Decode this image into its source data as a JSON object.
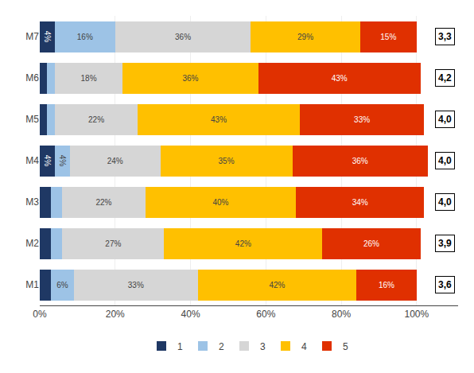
{
  "chart_data": {
    "type": "bar",
    "orientation": "horizontal",
    "stacked": true,
    "data_labels": true,
    "grid": true,
    "legend": "bottom",
    "categories": [
      "M1",
      "M2",
      "M3",
      "M4",
      "M5",
      "M6",
      "M7"
    ],
    "series": [
      {
        "name": "1",
        "color": "#1F3864",
        "values": [
          3,
          3,
          3,
          4,
          2,
          2,
          4
        ],
        "value_labels": [
          null,
          null,
          null,
          "4%",
          null,
          null,
          "4%"
        ]
      },
      {
        "name": "2",
        "color": "#9DC3E6",
        "values": [
          6,
          3,
          3,
          4,
          2,
          2,
          16
        ],
        "value_labels": [
          "6%",
          null,
          null,
          "4%",
          null,
          null,
          "16%"
        ]
      },
      {
        "name": "3",
        "color": "#D6D6D6",
        "values": [
          33,
          27,
          22,
          24,
          22,
          18,
          36
        ],
        "value_labels": [
          "33%",
          "27%",
          "22%",
          "24%",
          "22%",
          "18%",
          "36%"
        ]
      },
      {
        "name": "4",
        "color": "#FFC000",
        "values": [
          42,
          42,
          40,
          35,
          43,
          36,
          29
        ],
        "value_labels": [
          "42%",
          "42%",
          "40%",
          "35%",
          "43%",
          "36%",
          "29%"
        ]
      },
      {
        "name": "5",
        "color": "#E03000",
        "values": [
          16,
          26,
          34,
          36,
          33,
          43,
          15
        ],
        "value_labels": [
          "16%",
          "26%",
          "34%",
          "36%",
          "33%",
          "43%",
          "15%"
        ]
      }
    ],
    "annotations": [
      {
        "category": "M1",
        "text": "3,6"
      },
      {
        "category": "M2",
        "text": "3,9"
      },
      {
        "category": "M3",
        "text": "4,0"
      },
      {
        "category": "M4",
        "text": "4,0"
      },
      {
        "category": "M5",
        "text": "4,0"
      },
      {
        "category": "M6",
        "text": "4,2"
      },
      {
        "category": "M7",
        "text": "3,3"
      }
    ],
    "xlim": [
      0,
      111
    ],
    "xticks": [
      {
        "value": 0,
        "label": "0%"
      },
      {
        "value": 20,
        "label": "20%"
      },
      {
        "value": 40,
        "label": "40%"
      },
      {
        "value": 60,
        "label": "60%"
      },
      {
        "value": 80,
        "label": "80%"
      },
      {
        "value": 100,
        "label": "100%"
      }
    ]
  }
}
